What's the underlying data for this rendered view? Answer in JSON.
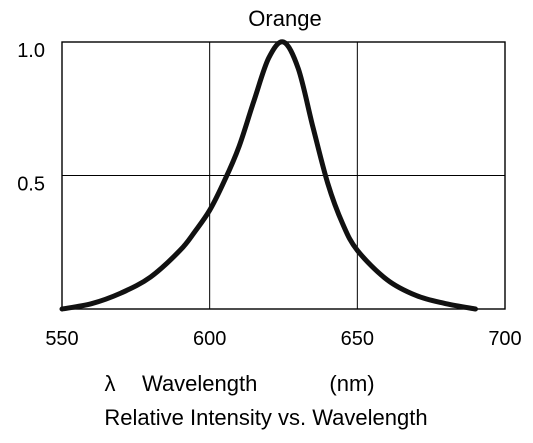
{
  "chart_data": {
    "type": "line",
    "title": "Orange",
    "xlabel_symbol": "λ",
    "xlabel": "Wavelength",
    "xlabel_unit": "(nm)",
    "caption": "Relative Intensity vs. Wavelength",
    "xlim": [
      550,
      700
    ],
    "ylim": [
      0,
      1.0
    ],
    "x_ticks": [
      550,
      600,
      650,
      700
    ],
    "x_tick_labels": [
      "550",
      "600",
      "650",
      "700"
    ],
    "y_ticks": [
      0.5,
      1.0
    ],
    "y_tick_labels": [
      "0.5",
      "1.0"
    ],
    "grid": true,
    "series": [
      {
        "x": [
          550,
          560,
          570,
          580,
          590,
          595,
          600,
          605,
          610,
          615,
          620,
          625,
          630,
          635,
          640,
          645,
          650,
          660,
          670,
          680,
          690
        ],
        "y": [
          0.0,
          0.02,
          0.06,
          0.12,
          0.22,
          0.29,
          0.37,
          0.48,
          0.61,
          0.78,
          0.94,
          1.0,
          0.9,
          0.68,
          0.47,
          0.32,
          0.22,
          0.11,
          0.05,
          0.02,
          0.0
        ]
      }
    ]
  }
}
